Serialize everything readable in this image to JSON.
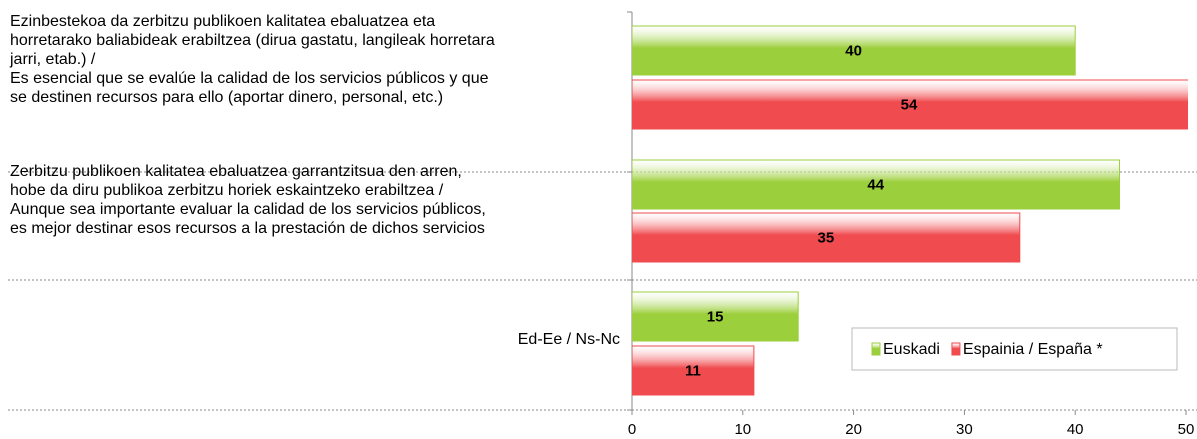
{
  "chart_data": {
    "type": "hbar",
    "categories": [
      "Ezinbestekoa da zerbitzu publikoen kalitatea ebaluatzea eta\nhorretarako baliabideak erabiltzea (dirua gastatu, langileak horretara\njarri, etab.) /\nEs esencial que se evalúe la calidad de los servicios públicos y que\nse destinen recursos para ello (aportar dinero, personal, etc.)",
      "Zerbitzu publikoen kalitatea ebaluatzea garrantzitsua den arren,\nhobe da diru publikoa zerbitzu horiek eskaintzeko erabiltzea /\nAunque sea importante evaluar la calidad de los servicios públicos,\nes mejor destinar esos recursos a la prestación de dichos servicios",
      "Ed-Ee / Ns-Nc"
    ],
    "series": [
      {
        "name": "Euskadi",
        "color": "#9ccf3c",
        "values": [
          40,
          44,
          15
        ]
      },
      {
        "name": "Espainia / España *",
        "color": "#f04b4f",
        "values": [
          54,
          35,
          11
        ]
      }
    ],
    "xlim": [
      0,
      50
    ],
    "xticks": [
      0,
      10,
      20,
      30,
      40,
      50
    ],
    "legend": "lower right"
  }
}
